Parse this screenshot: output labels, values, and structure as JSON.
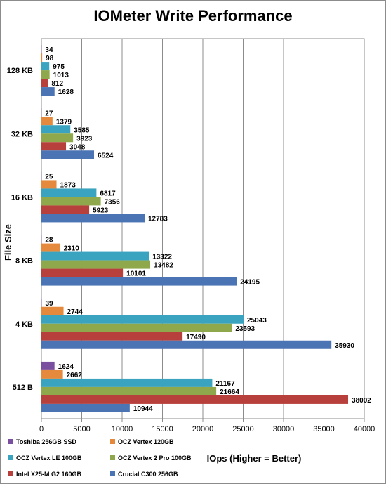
{
  "chart_data": {
    "type": "bar",
    "orientation": "horizontal",
    "title": "IOMeter Write Performance",
    "xlabel": "IOps (Higher = Better)",
    "ylabel": "File Size",
    "xlim": [
      0,
      40000
    ],
    "xticks": [
      0,
      5000,
      10000,
      15000,
      20000,
      25000,
      30000,
      35000,
      40000
    ],
    "grid": true,
    "legend_position": "bottom",
    "categories": [
      "128 KB",
      "32 KB",
      "16 KB",
      "8 KB",
      "4 KB",
      "512 B"
    ],
    "series": [
      {
        "name": "Toshiba 256GB SSD",
        "color": "#7a4fa0",
        "values": [
          34,
          27,
          25,
          28,
          39,
          1624
        ]
      },
      {
        "name": "OCZ Vertex 120GB",
        "color": "#e58a3c",
        "values": [
          98,
          1379,
          1873,
          2310,
          2744,
          2662
        ]
      },
      {
        "name": "OCZ Vertex LE 100GB",
        "color": "#3aa3c0",
        "values": [
          975,
          3585,
          6817,
          13322,
          25043,
          21167
        ]
      },
      {
        "name": "OCZ Vertex 2 Pro 100GB",
        "color": "#8ea84b",
        "values": [
          1013,
          3923,
          7356,
          13482,
          23593,
          21664
        ]
      },
      {
        "name": "Intel X25-M G2 160GB",
        "color": "#b8403c",
        "values": [
          812,
          3048,
          5923,
          10101,
          17490,
          38002
        ]
      },
      {
        "name": "Crucial C300 256GB",
        "color": "#4a74b4",
        "values": [
          1628,
          6524,
          12783,
          24195,
          35930,
          10944
        ]
      }
    ]
  }
}
